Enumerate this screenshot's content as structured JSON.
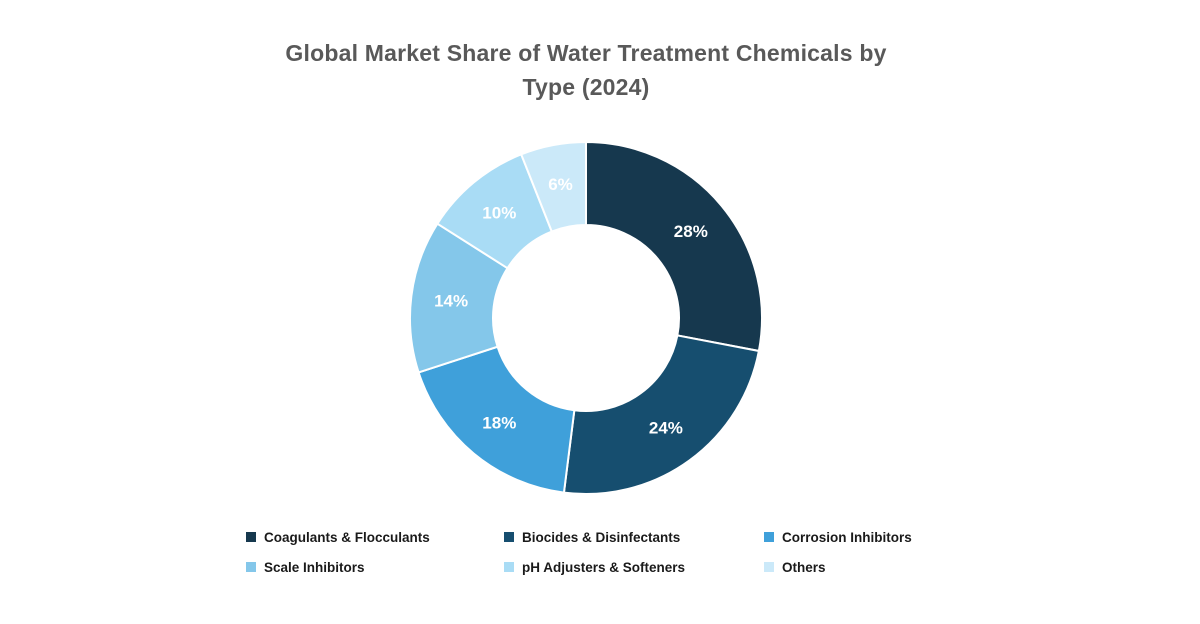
{
  "page": {
    "background_color": "#ffffff"
  },
  "title": {
    "full": "Global Market Share of Water Treatment Chemicals by Type (2024)",
    "lines": [
      "Global Market Share of Water Treatment Chemicals by",
      "Type (2024)"
    ],
    "color": "#595959"
  },
  "chart_data": {
    "type": "pie",
    "subtype": "donut",
    "title": "Global Market Share of Water Treatment Chemicals by Type (2024)",
    "unit": "%",
    "start_angle_deg": 0,
    "direction": "clockwise",
    "legend_position": "bottom",
    "data_label_color": "#ffffff",
    "segment_border_color": "#ffffff",
    "segments": [
      {
        "label": "Coagulants & Flocculants",
        "value": 28,
        "display": "28%",
        "color": "#16384e"
      },
      {
        "label": "Biocides & Disinfectants",
        "value": 24,
        "display": "24%",
        "color": "#164e6f"
      },
      {
        "label": "Corrosion Inhibitors",
        "value": 18,
        "display": "18%",
        "color": "#3fa0da"
      },
      {
        "label": "Scale Inhibitors",
        "value": 14,
        "display": "14%",
        "color": "#84c7ea"
      },
      {
        "label": "pH Adjusters & Softeners",
        "value": 10,
        "display": "10%",
        "color": "#a9dcf5"
      },
      {
        "label": "Others",
        "value": 6,
        "display": "6%",
        "color": "#cbe9f9"
      }
    ]
  }
}
